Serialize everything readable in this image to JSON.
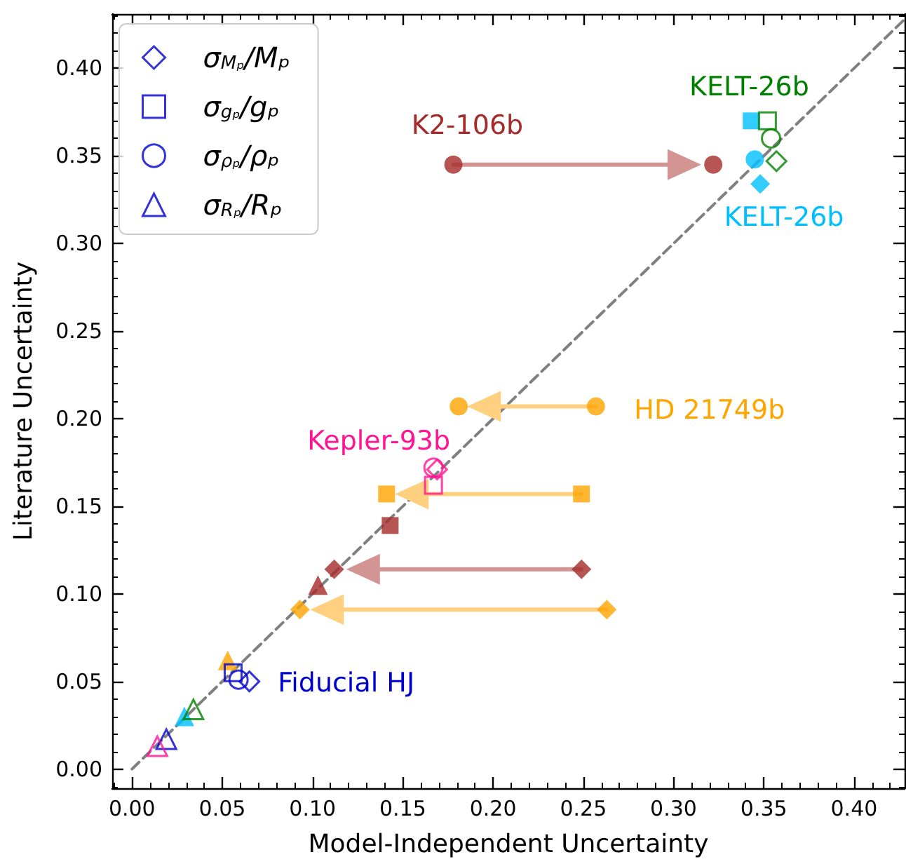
{
  "chart_data": {
    "type": "scatter",
    "xlabel": "Model-Independent Uncertainty",
    "ylabel": "Literature Uncertainty",
    "legend": "top left",
    "grid": false,
    "xlim": [
      -0.011,
      0.428
    ],
    "ylim": [
      -0.011,
      0.431
    ],
    "xticks": [
      {
        "value": 0,
        "label": "0.00"
      },
      {
        "value": 0.05,
        "label": "0.05"
      },
      {
        "value": 0.1,
        "label": "0.10"
      },
      {
        "value": 0.15,
        "label": "0.15"
      },
      {
        "value": 0.2,
        "label": "0.20"
      },
      {
        "value": 0.25,
        "label": "0.25"
      },
      {
        "value": 0.3,
        "label": "0.30"
      },
      {
        "value": 0.35,
        "label": "0.35"
      },
      {
        "value": 0.4,
        "label": "0.40"
      }
    ],
    "yticks": [
      {
        "value": 0,
        "label": "0.00"
      },
      {
        "value": 0.05,
        "label": "0.05"
      },
      {
        "value": 0.1,
        "label": "0.10"
      },
      {
        "value": 0.15,
        "label": "0.15"
      },
      {
        "value": 0.2,
        "label": "0.20"
      },
      {
        "value": 0.25,
        "label": "0.25"
      },
      {
        "value": 0.3,
        "label": "0.30"
      },
      {
        "value": 0.35,
        "label": "0.35"
      },
      {
        "value": 0.4,
        "label": "0.40"
      }
    ],
    "series": [
      {
        "type": "line",
        "color": "#808080",
        "line_style": "dashed",
        "marker": "none",
        "x": [
          0,
          0.428
        ],
        "values": [
          0,
          0.428
        ]
      },
      {
        "type": "line",
        "color": "#d39494",
        "x": [
          0.178,
          0.306
        ],
        "values": [
          0.345,
          0.345
        ]
      },
      {
        "type": "line",
        "color": "#ffd080",
        "x": [
          0.257,
          0.195
        ],
        "values": [
          0.207,
          0.207
        ]
      },
      {
        "type": "line",
        "color": "#ffd080",
        "x": [
          0.249,
          0.155
        ],
        "values": [
          0.157,
          0.157
        ]
      },
      {
        "type": "line",
        "color": "#d39494",
        "x": [
          0.249,
          0.128
        ],
        "values": [
          0.114,
          0.114
        ]
      },
      {
        "type": "line",
        "color": "#ffd080",
        "x": [
          0.263,
          0.108
        ],
        "values": [
          0.091,
          0.091
        ]
      },
      {
        "marker": "diamond",
        "colors": [
          "#00bfff",
          "#a52a2a",
          "#a52a2a",
          "#ffa500",
          "#ffa500"
        ],
        "x": [
          0.348,
          0.112,
          0.249,
          0.093,
          0.263
        ],
        "values": [
          0.334,
          0.114,
          0.114,
          0.091,
          0.091
        ]
      },
      {
        "marker": "square",
        "colors": [
          "#00bfff",
          "#ffa500",
          "#ffa500",
          "#a52a2a"
        ],
        "x": [
          0.343,
          0.141,
          0.249,
          0.143
        ],
        "values": [
          0.37,
          0.157,
          0.157,
          0.139
        ]
      },
      {
        "marker": "circle",
        "colors": [
          "#00bfff",
          "#a52a2a",
          "#a52a2a",
          "#ffa500",
          "#ffa500"
        ],
        "x": [
          0.345,
          0.178,
          0.322,
          0.181,
          0.257
        ],
        "values": [
          0.348,
          0.345,
          0.345,
          0.207,
          0.207
        ]
      },
      {
        "marker": "triangle",
        "colors": [
          "#00bfff",
          "#ffa500",
          "#a52a2a"
        ],
        "x": [
          0.029,
          0.053,
          0.103
        ],
        "values": [
          0.03,
          0.062,
          0.105
        ]
      },
      {
        "name": "σ$_{Mₚ}$/Mₚ",
        "marker": "diamond",
        "color": "#0000cd",
        "colors": [
          "#0000cd",
          "#ff1493",
          "#008000"
        ],
        "x": [
          0.065,
          0.169,
          0.357
        ],
        "values": [
          0.05,
          0.171,
          0.347
        ]
      },
      {
        "name": "σ$_{gₚ}$/gₚ",
        "marker": "square",
        "color": "#0000cd",
        "colors": [
          "#0000cd",
          "#ff1493",
          "#008000"
        ],
        "x": [
          0.056,
          0.167,
          0.352
        ],
        "values": [
          0.055,
          0.162,
          0.37
        ]
      },
      {
        "name": "σ$_{ρₚ}$/ρₚ",
        "marker": "circle",
        "color": "#0000cd",
        "colors": [
          "#0000cd",
          "#ff1493",
          "#008000"
        ],
        "x": [
          0.059,
          0.167,
          0.354
        ],
        "values": [
          0.051,
          0.172,
          0.36
        ]
      },
      {
        "name": "σ$_{Rₚ}$/Rₚ",
        "marker": "triangle",
        "color": "#0000cd",
        "colors": [
          "#0000cd",
          "#ff1493",
          "#008000"
        ],
        "x": [
          0.019,
          0.014,
          0.034
        ],
        "values": [
          0.017,
          0.013,
          0.034
        ]
      }
    ],
    "annotations": [
      "K2-106b",
      "KELT-26b",
      "KELT-26b",
      "HD 21749b",
      "Kepler-93b",
      "Fiducial HJ"
    ]
  }
}
